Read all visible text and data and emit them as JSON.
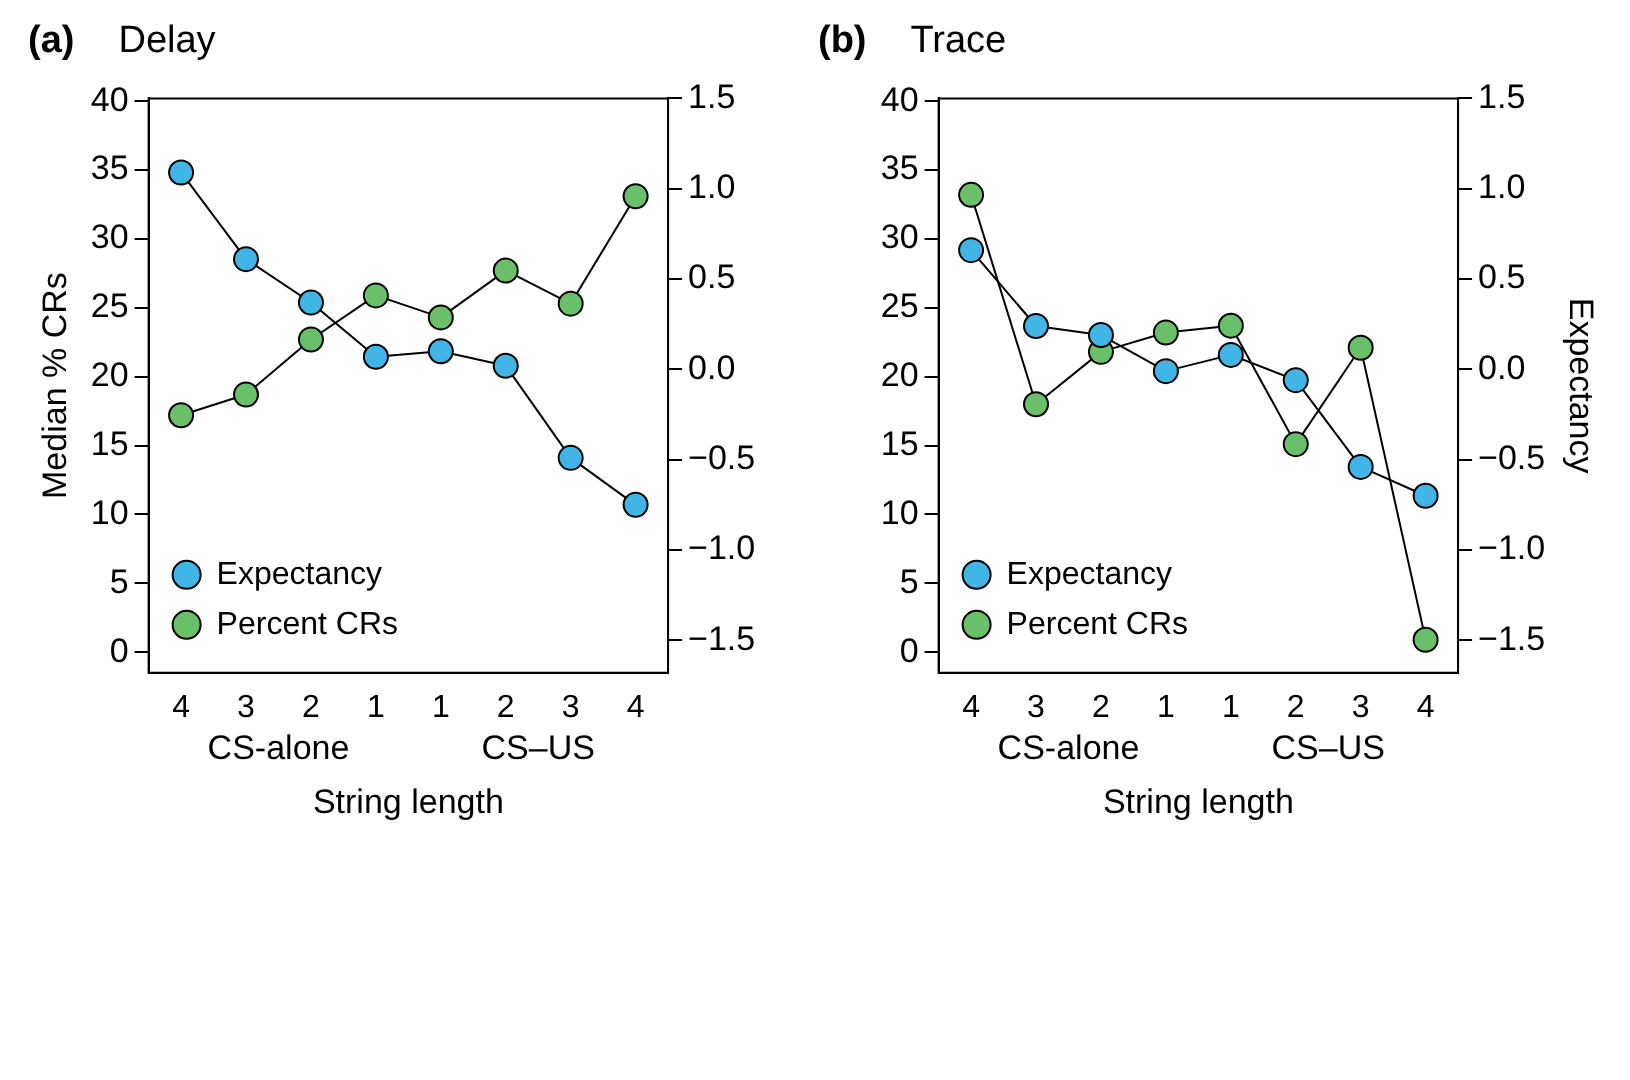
{
  "chart_data": [
    {
      "type": "line",
      "title": "(a)",
      "subtitle": "Delay",
      "xlabel": "String length",
      "ylabel": "Median % CRs",
      "categories": [
        "4",
        "3",
        "2",
        "1",
        "1",
        "2",
        "3",
        "4"
      ],
      "series": [
        {
          "name": "Expectancy",
          "color": "#41b6e6",
          "axis": "y2",
          "values": [
            1.09,
            0.61,
            0.37,
            0.07,
            0.1,
            0.02,
            -0.49,
            -0.75
          ]
        },
        {
          "name": "Percent CRs",
          "color": "#6abf69",
          "values": [
            17.2,
            18.7,
            22.7,
            25.9,
            24.3,
            27.7,
            25.3,
            33.1
          ]
        }
      ],
      "ylim": [
        -1.5,
        40.2
      ],
      "yticks": [
        0,
        5,
        10,
        15,
        20,
        25,
        30,
        35,
        40
      ],
      "y2lim": [
        -1.68,
        1.5
      ],
      "y2ticks": [
        {
          "value": -1.5,
          "label": "−1.5"
        },
        {
          "value": -1,
          "label": "−1.0"
        },
        {
          "value": -0.5,
          "label": "−0.5"
        },
        {
          "value": 0,
          "label": "0.0"
        },
        {
          "value": 0.5,
          "label": "0.5"
        },
        {
          "value": 1,
          "label": "1.0"
        },
        {
          "value": 1.5,
          "label": "1.5"
        }
      ],
      "annotations": [
        "CS-alone",
        "CS–US"
      ],
      "legend": "bottom left",
      "marker": "circle",
      "line_style": "solid",
      "grid": false
    },
    {
      "type": "line",
      "title": "(b)",
      "subtitle": "Trace",
      "xlabel": "String length",
      "y2label": "Expectancy",
      "categories": [
        "4",
        "3",
        "2",
        "1",
        "1",
        "2",
        "3",
        "4"
      ],
      "series": [
        {
          "name": "Expectancy",
          "color": "#41b6e6",
          "axis": "y2",
          "values": [
            0.66,
            0.24,
            0.19,
            -0.01,
            0.08,
            -0.06,
            -0.54,
            -0.7
          ]
        },
        {
          "name": "Percent CRs",
          "color": "#6abf69",
          "values": [
            33.2,
            18.0,
            21.8,
            23.2,
            23.7,
            15.1,
            22.1,
            0.9
          ]
        }
      ],
      "ylim": [
        -1.5,
        40.2
      ],
      "yticks": [
        0,
        5,
        10,
        15,
        20,
        25,
        30,
        35,
        40
      ],
      "y2lim": [
        -1.68,
        1.5
      ],
      "y2ticks": [
        {
          "value": -1.5,
          "label": "−1.5"
        },
        {
          "value": -1,
          "label": "−1.0"
        },
        {
          "value": -0.5,
          "label": "−0.5"
        },
        {
          "value": 0,
          "label": "0.0"
        },
        {
          "value": 0.5,
          "label": "0.5"
        },
        {
          "value": 1,
          "label": "1.0"
        },
        {
          "value": 1.5,
          "label": "1.5"
        }
      ],
      "annotations": [
        "CS-alone",
        "CS–US"
      ],
      "legend": "bottom left",
      "marker": "circle",
      "line_style": "solid",
      "grid": false
    }
  ]
}
